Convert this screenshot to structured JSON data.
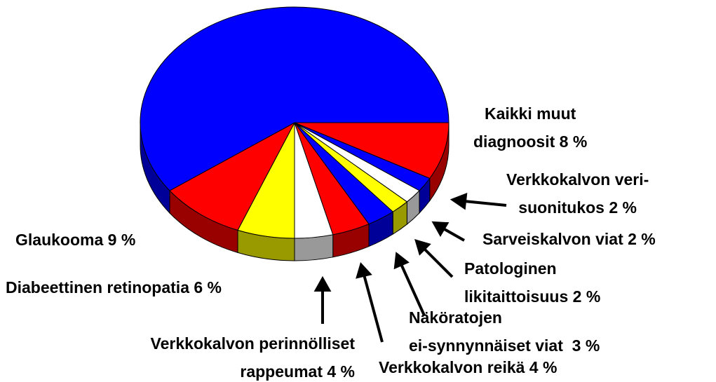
{
  "chart_data": {
    "type": "pie",
    "categories": [
      "Kaikki muut\ndiagnoosit 8 %",
      "Verkkokalvon veri-\nsuonitukos 2 %",
      "Sarveiskalvon viat 2 %",
      "Patologinen\nlikitaittoisuus 2 %",
      "Näköratojen\nei-synnynnäiset viat  3 %",
      "Verkkokalvon reikä 4 %",
      "Verkkokalvon perinnölliset\nrappeumat 4 %",
      "Diabeettinen retinopatia 6 %",
      "Glaukooma 9 %",
      null
    ],
    "values": [
      8,
      2,
      2,
      2,
      3,
      4,
      4,
      6,
      9,
      60
    ],
    "colors": [
      "#ff0000",
      "#0000ff",
      "#ffffff",
      "#ffff00",
      "#0000ff",
      "#ff0000",
      "#ffffff",
      "#ffff00",
      "#ff0000",
      "#0000ff"
    ]
  }
}
